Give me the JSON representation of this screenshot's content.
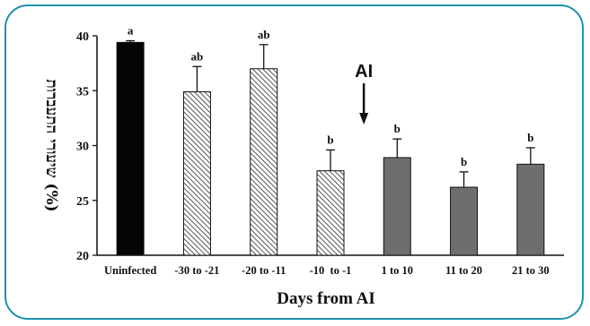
{
  "chart_data": {
    "type": "bar",
    "title": "",
    "xlabel": "Days from AI",
    "ylabel": "שיעורי התעברות (%)",
    "ylim": [
      20,
      40
    ],
    "yticks": [
      "20",
      "25",
      "30",
      "35",
      "40"
    ],
    "categories": [
      "Uninfected",
      "-30 to -21",
      "-20 to -11",
      "-10  to -1",
      "1 to 10",
      "11 to 20",
      "21 to 30"
    ],
    "values": [
      39.4,
      34.9,
      37.0,
      27.7,
      28.9,
      26.2,
      28.3
    ],
    "errors": [
      0.15,
      2.3,
      2.2,
      1.9,
      1.7,
      1.4,
      1.5
    ],
    "significance": [
      "a",
      "ab",
      "ab",
      "b",
      "b",
      "b",
      "b"
    ],
    "fills": [
      "solid-black",
      "hatched",
      "hatched",
      "hatched",
      "solid-gray",
      "solid-gray",
      "solid-gray"
    ],
    "annotation": {
      "text": "AI",
      "arrow": "down",
      "position_after_category": "-10  to -1"
    },
    "grid": false,
    "colors": {
      "border": "#1f90ad",
      "black_bar": "#050505",
      "gray_bar": "#6e6e6e",
      "hatch_line": "#2a2a2a"
    }
  }
}
